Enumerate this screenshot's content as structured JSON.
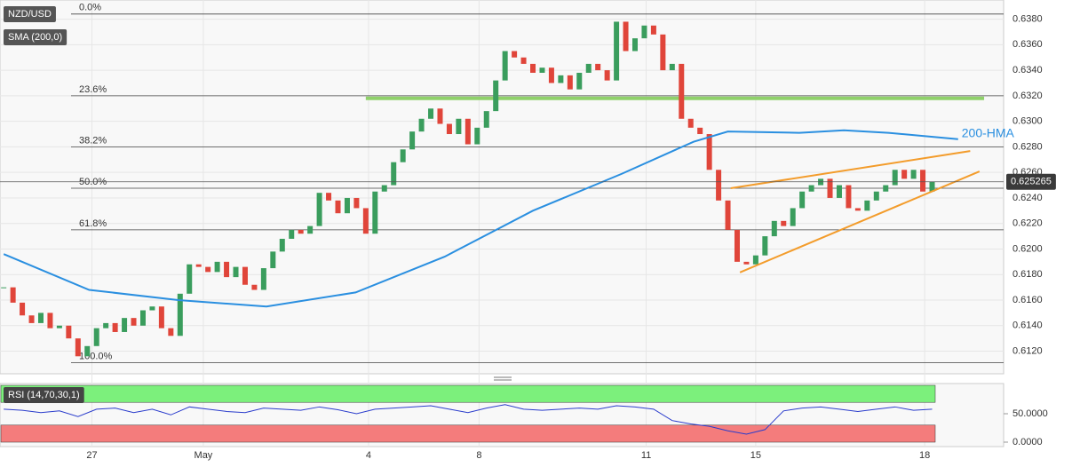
{
  "chart_data": [
    {
      "type": "candlestick",
      "title": "NZD/USD",
      "values": [
        0.617,
        0.6158,
        0.6148,
        0.6142,
        0.615,
        0.6138,
        0.614,
        0.613,
        0.6116,
        0.6124,
        0.6138,
        0.6142,
        0.6135,
        0.6146,
        0.614,
        0.6152,
        0.6155,
        0.6138,
        0.6132,
        0.6165,
        0.6188,
        0.6186,
        0.6182,
        0.619,
        0.6178,
        0.6186,
        0.6172,
        0.6168,
        0.6185,
        0.6198,
        0.6208,
        0.6215,
        0.6212,
        0.6218,
        0.6244,
        0.6238,
        0.6228,
        0.624,
        0.6232,
        0.6212,
        0.6245,
        0.625,
        0.6268,
        0.6278,
        0.6292,
        0.6302,
        0.631,
        0.6298,
        0.629,
        0.6302,
        0.6282,
        0.6295,
        0.6308,
        0.6332,
        0.6355,
        0.635,
        0.6345,
        0.6338,
        0.6342,
        0.633,
        0.6336,
        0.6325,
        0.6338,
        0.6345,
        0.634,
        0.6332,
        0.6378,
        0.6355,
        0.6365,
        0.6375,
        0.6368,
        0.634,
        0.6345,
        0.6302,
        0.6295,
        0.629,
        0.6262,
        0.6238,
        0.6215,
        0.619,
        0.6188,
        0.6195,
        0.621,
        0.6222,
        0.6218,
        0.6232,
        0.6245,
        0.625,
        0.6255,
        0.624,
        0.625,
        0.6232,
        0.623,
        0.6238,
        0.6245,
        0.625,
        0.6262,
        0.6255,
        0.6262,
        0.6245,
        0.625265
      ],
      "up_color": "#3a9d5d",
      "down_color": "#e0453a",
      "last_price": 0.625265,
      "xlim": [
        -0.4,
        107.7
      ],
      "xticks": [
        {
          "value": 9.5,
          "label": "27"
        },
        {
          "value": 21.5,
          "label": "May"
        },
        {
          "value": 39.3,
          "label": "4"
        },
        {
          "value": 51.2,
          "label": "8"
        },
        {
          "value": 69.2,
          "label": "11"
        },
        {
          "value": 81,
          "label": "15"
        },
        {
          "value": 99.2,
          "label": "18"
        }
      ],
      "ylim": [
        0.6103,
        0.6395
      ],
      "yticks": [
        {
          "value": 0.612,
          "label": "0.6120"
        },
        {
          "value": 0.614,
          "label": "0.6140"
        },
        {
          "value": 0.616,
          "label": "0.6160"
        },
        {
          "value": 0.618,
          "label": "0.6180"
        },
        {
          "value": 0.62,
          "label": "0.6200"
        },
        {
          "value": 0.622,
          "label": "0.6220"
        },
        {
          "value": 0.624,
          "label": "0.6240"
        },
        {
          "value": 0.626,
          "label": "0.6260"
        },
        {
          "value": 0.628,
          "label": "0.6280"
        },
        {
          "value": 0.63,
          "label": "0.6300"
        },
        {
          "value": 0.632,
          "label": "0.6320"
        },
        {
          "value": 0.634,
          "label": "0.6340"
        },
        {
          "value": 0.636,
          "label": "0.6360"
        },
        {
          "value": 0.638,
          "label": "0.6380"
        }
      ],
      "sma": {
        "name": "SMA (200,0)",
        "label": "200-HMA",
        "color": "#2a8fe0",
        "x": [
          0,
          9.2,
          18.8,
          28.3,
          37.9,
          47.5,
          57,
          66.6,
          74.3,
          78,
          85.7,
          90.5,
          95.3,
          102.8
        ],
        "values": [
          0.6196,
          0.6168,
          0.616,
          0.6155,
          0.6166,
          0.6194,
          0.623,
          0.6259,
          0.6284,
          0.6292,
          0.6291,
          0.6293,
          0.6291,
          0.6286
        ]
      },
      "fib_levels": [
        {
          "label": "0.0%",
          "value": 0.6384
        },
        {
          "label": "23.6%",
          "value": 0.632
        },
        {
          "label": "38.2%",
          "value": 0.628
        },
        {
          "label": "50.0%",
          "value": 0.62476
        },
        {
          "label": "61.8%",
          "value": 0.6215
        },
        {
          "label": "100.0%",
          "value": 0.6111
        }
      ],
      "resistance": {
        "color": "#8fd16a",
        "x": [
          39,
          105.6
        ],
        "values": [
          0.6318,
          0.6318
        ]
      },
      "channel": [
        {
          "color": "#f39c2b",
          "x": [
            78.3,
            104.1
          ],
          "values": [
            0.62476,
            0.62767
          ]
        },
        {
          "color": "#f39c2b",
          "x": [
            79.3,
            105.1
          ],
          "values": [
            0.61817,
            0.62608
          ]
        }
      ]
    },
    {
      "type": "line",
      "title": "RSI (14,70,30,1)",
      "color": "#2a3ccc",
      "x": [
        0,
        2,
        4,
        6,
        8,
        10,
        12,
        14,
        16,
        18,
        20,
        22,
        24,
        26,
        28,
        30,
        32,
        34,
        36,
        38,
        40,
        42,
        44,
        46,
        48,
        50,
        52,
        54,
        56,
        58,
        60,
        62,
        64,
        66,
        68,
        70,
        72,
        74,
        76,
        78,
        80,
        82,
        84,
        86,
        88,
        90,
        92,
        94,
        96,
        98,
        100
      ],
      "values": [
        58,
        56,
        52,
        55,
        45,
        58,
        60,
        52,
        58,
        48,
        62,
        58,
        54,
        52,
        60,
        58,
        56,
        62,
        57,
        50,
        58,
        60,
        62,
        64,
        58,
        52,
        60,
        66,
        58,
        56,
        58,
        60,
        58,
        64,
        62,
        58,
        38,
        32,
        28,
        20,
        14,
        22,
        55,
        60,
        62,
        58,
        54,
        58,
        62,
        56,
        58
      ],
      "ylim": [
        0,
        100
      ],
      "yticks": [
        {
          "value": 50,
          "label": "50.0000"
        },
        {
          "value": 0,
          "label": "0.0000"
        }
      ],
      "bands": [
        {
          "from": 70,
          "to": 100,
          "color": "#7cf07c"
        },
        {
          "from": 0,
          "to": 30,
          "color": "#f47c7c"
        }
      ]
    }
  ]
}
